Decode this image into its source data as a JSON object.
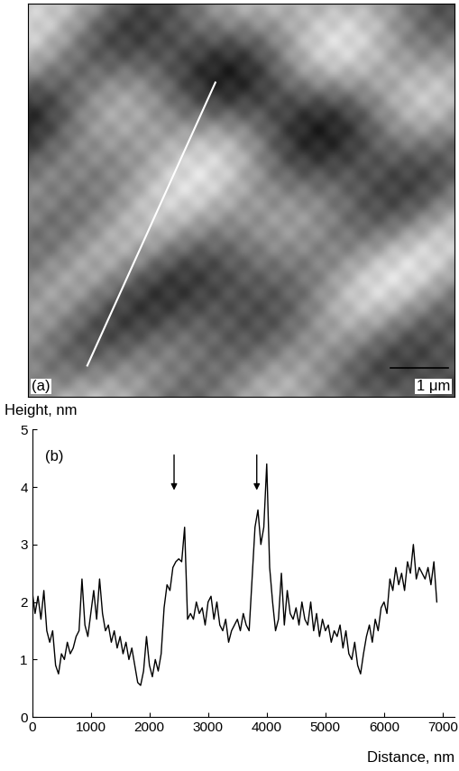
{
  "image_panel": {
    "label": "(a)",
    "scale_bar": "1 μm"
  },
  "chart_data": {
    "type": "line",
    "label": "(b)",
    "y_label": "Height, nm",
    "x_label": "Distance, nm",
    "color": "#000000",
    "x": [
      0,
      50,
      100,
      150,
      200,
      250,
      300,
      350,
      400,
      450,
      500,
      550,
      600,
      650,
      700,
      750,
      800,
      850,
      900,
      950,
      1000,
      1050,
      1100,
      1150,
      1200,
      1250,
      1300,
      1350,
      1400,
      1450,
      1500,
      1550,
      1600,
      1650,
      1700,
      1750,
      1800,
      1850,
      1900,
      1950,
      2000,
      2050,
      2100,
      2150,
      2200,
      2250,
      2300,
      2350,
      2400,
      2450,
      2500,
      2550,
      2600,
      2650,
      2700,
      2750,
      2800,
      2850,
      2900,
      2950,
      3000,
      3050,
      3100,
      3150,
      3200,
      3250,
      3300,
      3350,
      3400,
      3450,
      3500,
      3550,
      3600,
      3650,
      3700,
      3750,
      3800,
      3850,
      3900,
      3950,
      4000,
      4050,
      4100,
      4150,
      4200,
      4250,
      4300,
      4350,
      4400,
      4450,
      4500,
      4550,
      4600,
      4650,
      4700,
      4750,
      4800,
      4850,
      4900,
      4950,
      5000,
      5050,
      5100,
      5150,
      5200,
      5250,
      5300,
      5350,
      5400,
      5450,
      5500,
      5550,
      5600,
      5650,
      5700,
      5750,
      5800,
      5850,
      5900,
      5950,
      6000,
      6050,
      6100,
      6150,
      6200,
      6250,
      6300,
      6350,
      6400,
      6450,
      6500,
      6550,
      6600,
      6650,
      6700,
      6750,
      6800,
      6850,
      6900
    ],
    "values": [
      2.2,
      1.8,
      2.1,
      1.7,
      2.2,
      1.5,
      1.3,
      1.5,
      0.9,
      0.75,
      1.1,
      1.0,
      1.3,
      1.1,
      1.2,
      1.4,
      1.5,
      2.4,
      1.6,
      1.4,
      1.8,
      2.2,
      1.7,
      2.4,
      1.8,
      1.5,
      1.6,
      1.3,
      1.5,
      1.2,
      1.4,
      1.1,
      1.3,
      1.0,
      1.2,
      0.9,
      0.6,
      0.55,
      0.8,
      1.4,
      0.9,
      0.7,
      1.0,
      0.8,
      1.1,
      1.9,
      2.3,
      2.2,
      2.6,
      2.7,
      2.75,
      2.7,
      3.3,
      1.7,
      1.8,
      1.7,
      2.0,
      1.8,
      1.9,
      1.6,
      2.0,
      2.1,
      1.7,
      2.0,
      1.6,
      1.5,
      1.7,
      1.3,
      1.5,
      1.6,
      1.7,
      1.5,
      1.8,
      1.6,
      1.5,
      2.4,
      3.3,
      3.6,
      3.0,
      3.3,
      4.4,
      2.6,
      2.0,
      1.5,
      1.7,
      2.5,
      1.6,
      2.2,
      1.8,
      1.7,
      1.9,
      1.6,
      2.0,
      1.7,
      1.6,
      2.0,
      1.5,
      1.8,
      1.4,
      1.7,
      1.5,
      1.6,
      1.3,
      1.5,
      1.4,
      1.6,
      1.2,
      1.5,
      1.1,
      1.0,
      1.3,
      0.9,
      0.75,
      1.1,
      1.4,
      1.6,
      1.3,
      1.7,
      1.5,
      1.9,
      2.0,
      1.8,
      2.4,
      2.2,
      2.6,
      2.3,
      2.5,
      2.2,
      2.7,
      2.5,
      3.0,
      2.4,
      2.6,
      2.5,
      2.4,
      2.6,
      2.3,
      2.7,
      2.0
    ],
    "arrows_x": [
      2420,
      3830
    ],
    "xlim": [
      0,
      7200
    ],
    "ylim": [
      0,
      5
    ],
    "xticks": [
      0,
      1000,
      2000,
      3000,
      4000,
      5000,
      6000,
      7000
    ],
    "yticks": [
      0,
      1,
      2,
      3,
      4,
      5
    ]
  }
}
